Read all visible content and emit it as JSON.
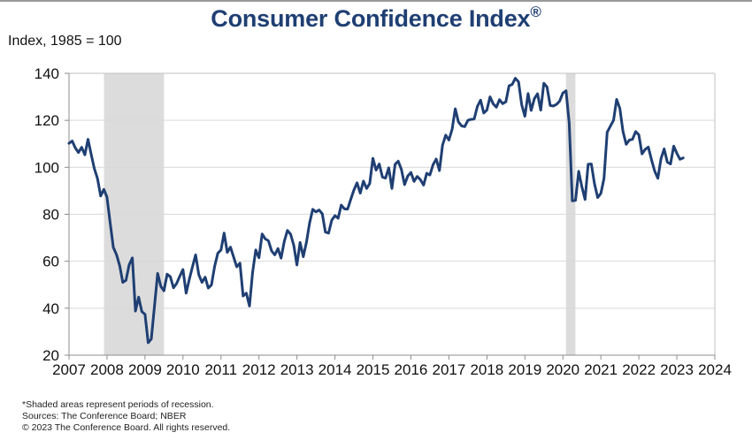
{
  "chart_data": {
    "type": "line",
    "title": "Consumer Confidence Index",
    "title_mark": "®",
    "ylabel": "Index, 1985 = 100",
    "xlabel": "",
    "ylim": [
      20,
      140
    ],
    "xlim": [
      2007,
      2024
    ],
    "yticks": [
      20,
      40,
      60,
      80,
      100,
      120,
      140
    ],
    "xticks": [
      2007,
      2008,
      2009,
      2010,
      2011,
      2012,
      2013,
      2014,
      2015,
      2016,
      2017,
      2018,
      2019,
      2020,
      2021,
      2022,
      2023,
      2024
    ],
    "grid": "horizontal",
    "line_color": "#1f3f73",
    "recession_color": "#dcdcdc",
    "recessions": [
      {
        "start": 2007.92,
        "end": 2009.5
      },
      {
        "start": 2020.08,
        "end": 2020.33
      }
    ],
    "series": [
      {
        "name": "Consumer Confidence Index",
        "start": 2007.0,
        "step": 0.08333,
        "values": [
          110.2,
          111.2,
          108.2,
          106.3,
          108.5,
          105.3,
          111.9,
          105.6,
          99.5,
          95.2,
          87.8,
          90.6,
          87.3,
          76.4,
          65.9,
          62.8,
          58.1,
          51.0,
          51.9,
          58.5,
          61.4,
          38.8,
          44.7,
          38.6,
          37.4,
          25.3,
          26.9,
          40.8,
          54.8,
          49.3,
          47.4,
          54.5,
          53.4,
          48.7,
          50.6,
          53.6,
          56.5,
          46.4,
          52.3,
          57.7,
          62.7,
          54.3,
          51.0,
          53.2,
          48.6,
          49.9,
          57.8,
          63.4,
          64.8,
          72.0,
          63.8,
          66.0,
          61.7,
          57.6,
          59.2,
          45.2,
          46.4,
          40.9,
          55.2,
          64.8,
          61.5,
          71.6,
          69.5,
          68.7,
          64.4,
          62.7,
          65.4,
          61.3,
          68.4,
          73.1,
          71.5,
          66.7,
          58.4,
          68.0,
          61.9,
          68.1,
          76.2,
          82.1,
          81.0,
          81.8,
          80.2,
          72.4,
          72.0,
          77.5,
          79.4,
          78.3,
          83.9,
          82.3,
          82.2,
          86.4,
          90.3,
          93.4,
          89.0,
          94.1,
          91.0,
          93.1,
          103.8,
          98.8,
          101.4,
          95.8,
          95.4,
          99.8,
          91.0,
          101.3,
          102.6,
          99.1,
          92.6,
          96.3,
          97.8,
          94.0,
          96.1,
          94.7,
          92.4,
          97.4,
          96.7,
          101.1,
          103.5,
          98.6,
          109.4,
          113.7,
          111.6,
          116.1,
          124.9,
          119.4,
          117.6,
          117.3,
          120.0,
          120.4,
          120.6,
          125.9,
          128.6,
          123.1,
          124.3,
          130.0,
          127.0,
          125.6,
          128.8,
          127.1,
          127.9,
          134.7,
          135.3,
          137.9,
          136.4,
          126.6,
          121.7,
          131.4,
          124.2,
          129.2,
          131.3,
          124.3,
          135.8,
          134.2,
          126.3,
          126.1,
          126.8,
          128.2,
          131.6,
          132.6,
          118.8,
          85.7,
          85.9,
          98.3,
          91.7,
          86.3,
          101.3,
          101.4,
          92.9,
          87.1,
          88.9,
          95.2,
          114.9,
          117.5,
          120.0,
          128.9,
          125.1,
          115.2,
          109.8,
          111.6,
          111.9,
          115.2,
          113.8,
          105.7,
          107.6,
          108.6,
          103.2,
          98.4,
          95.3,
          103.6,
          107.8,
          102.2,
          101.4,
          109.0,
          106.0,
          103.4,
          104.0
        ]
      }
    ]
  },
  "footer": {
    "note": "*Shaded areas represent periods of recession.",
    "sources": "Sources: The Conference Board; NBER",
    "copyright": "© 2023 The Conference Board. All rights reserved."
  }
}
